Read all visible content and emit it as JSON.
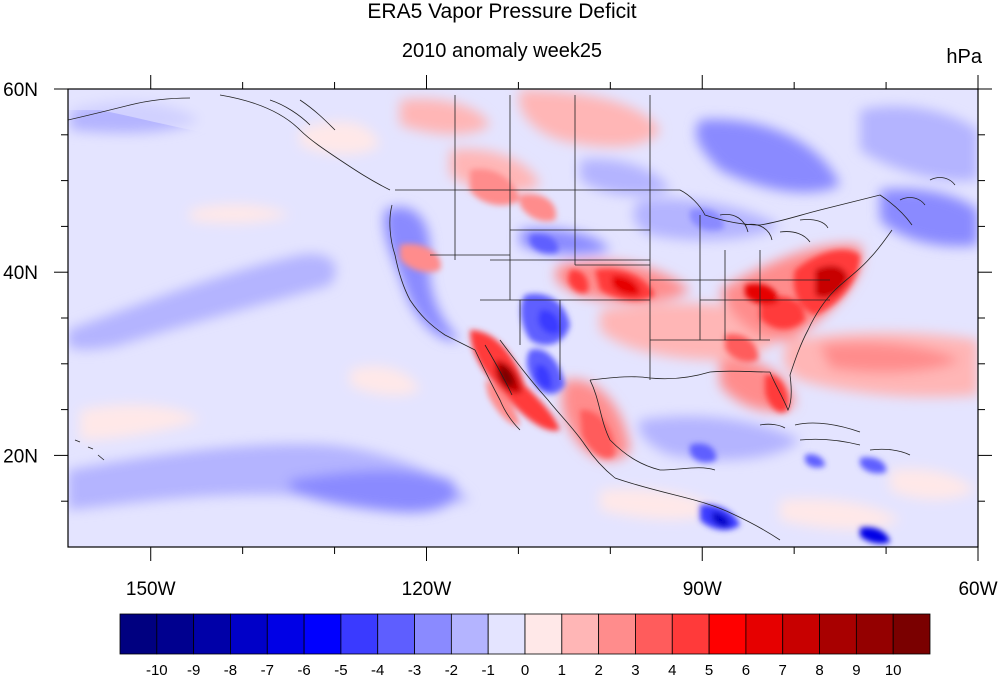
{
  "title": "ERA5 Vapor Pressure Deficit",
  "subtitle": "2010 anomaly week25",
  "units": "hPa",
  "map": {
    "lon_range": [
      -159,
      -60
    ],
    "lat_range": [
      10,
      60
    ],
    "x_ticks": [
      {
        "lon": -150,
        "label": "150W"
      },
      {
        "lon": -120,
        "label": "120W"
      },
      {
        "lon": -90,
        "label": "90W"
      },
      {
        "lon": -60,
        "label": "60W"
      }
    ],
    "y_ticks": [
      {
        "lat": 20,
        "label": "20N"
      },
      {
        "lat": 40,
        "label": "40N"
      },
      {
        "lat": 60,
        "label": "60N"
      }
    ]
  },
  "colorbar": {
    "labels": [
      "-10",
      "-9",
      "-8",
      "-7",
      "-6",
      "-5",
      "-4",
      "-3",
      "-2",
      "-1",
      "0",
      "1",
      "2",
      "3",
      "4",
      "5",
      "6",
      "7",
      "8",
      "9",
      "10"
    ],
    "colors": [
      "#000080",
      "#00008f",
      "#0000a8",
      "#0000c8",
      "#0000e6",
      "#0000ff",
      "#3a3aff",
      "#5e5eff",
      "#8a8aff",
      "#b4b4ff",
      "#e4e4ff",
      "#ffe8e8",
      "#ffb6b6",
      "#ff8c8c",
      "#ff5c5c",
      "#ff3a3a",
      "#ff0000",
      "#e60000",
      "#c80000",
      "#a80000",
      "#940000",
      "#7a0000"
    ]
  }
}
